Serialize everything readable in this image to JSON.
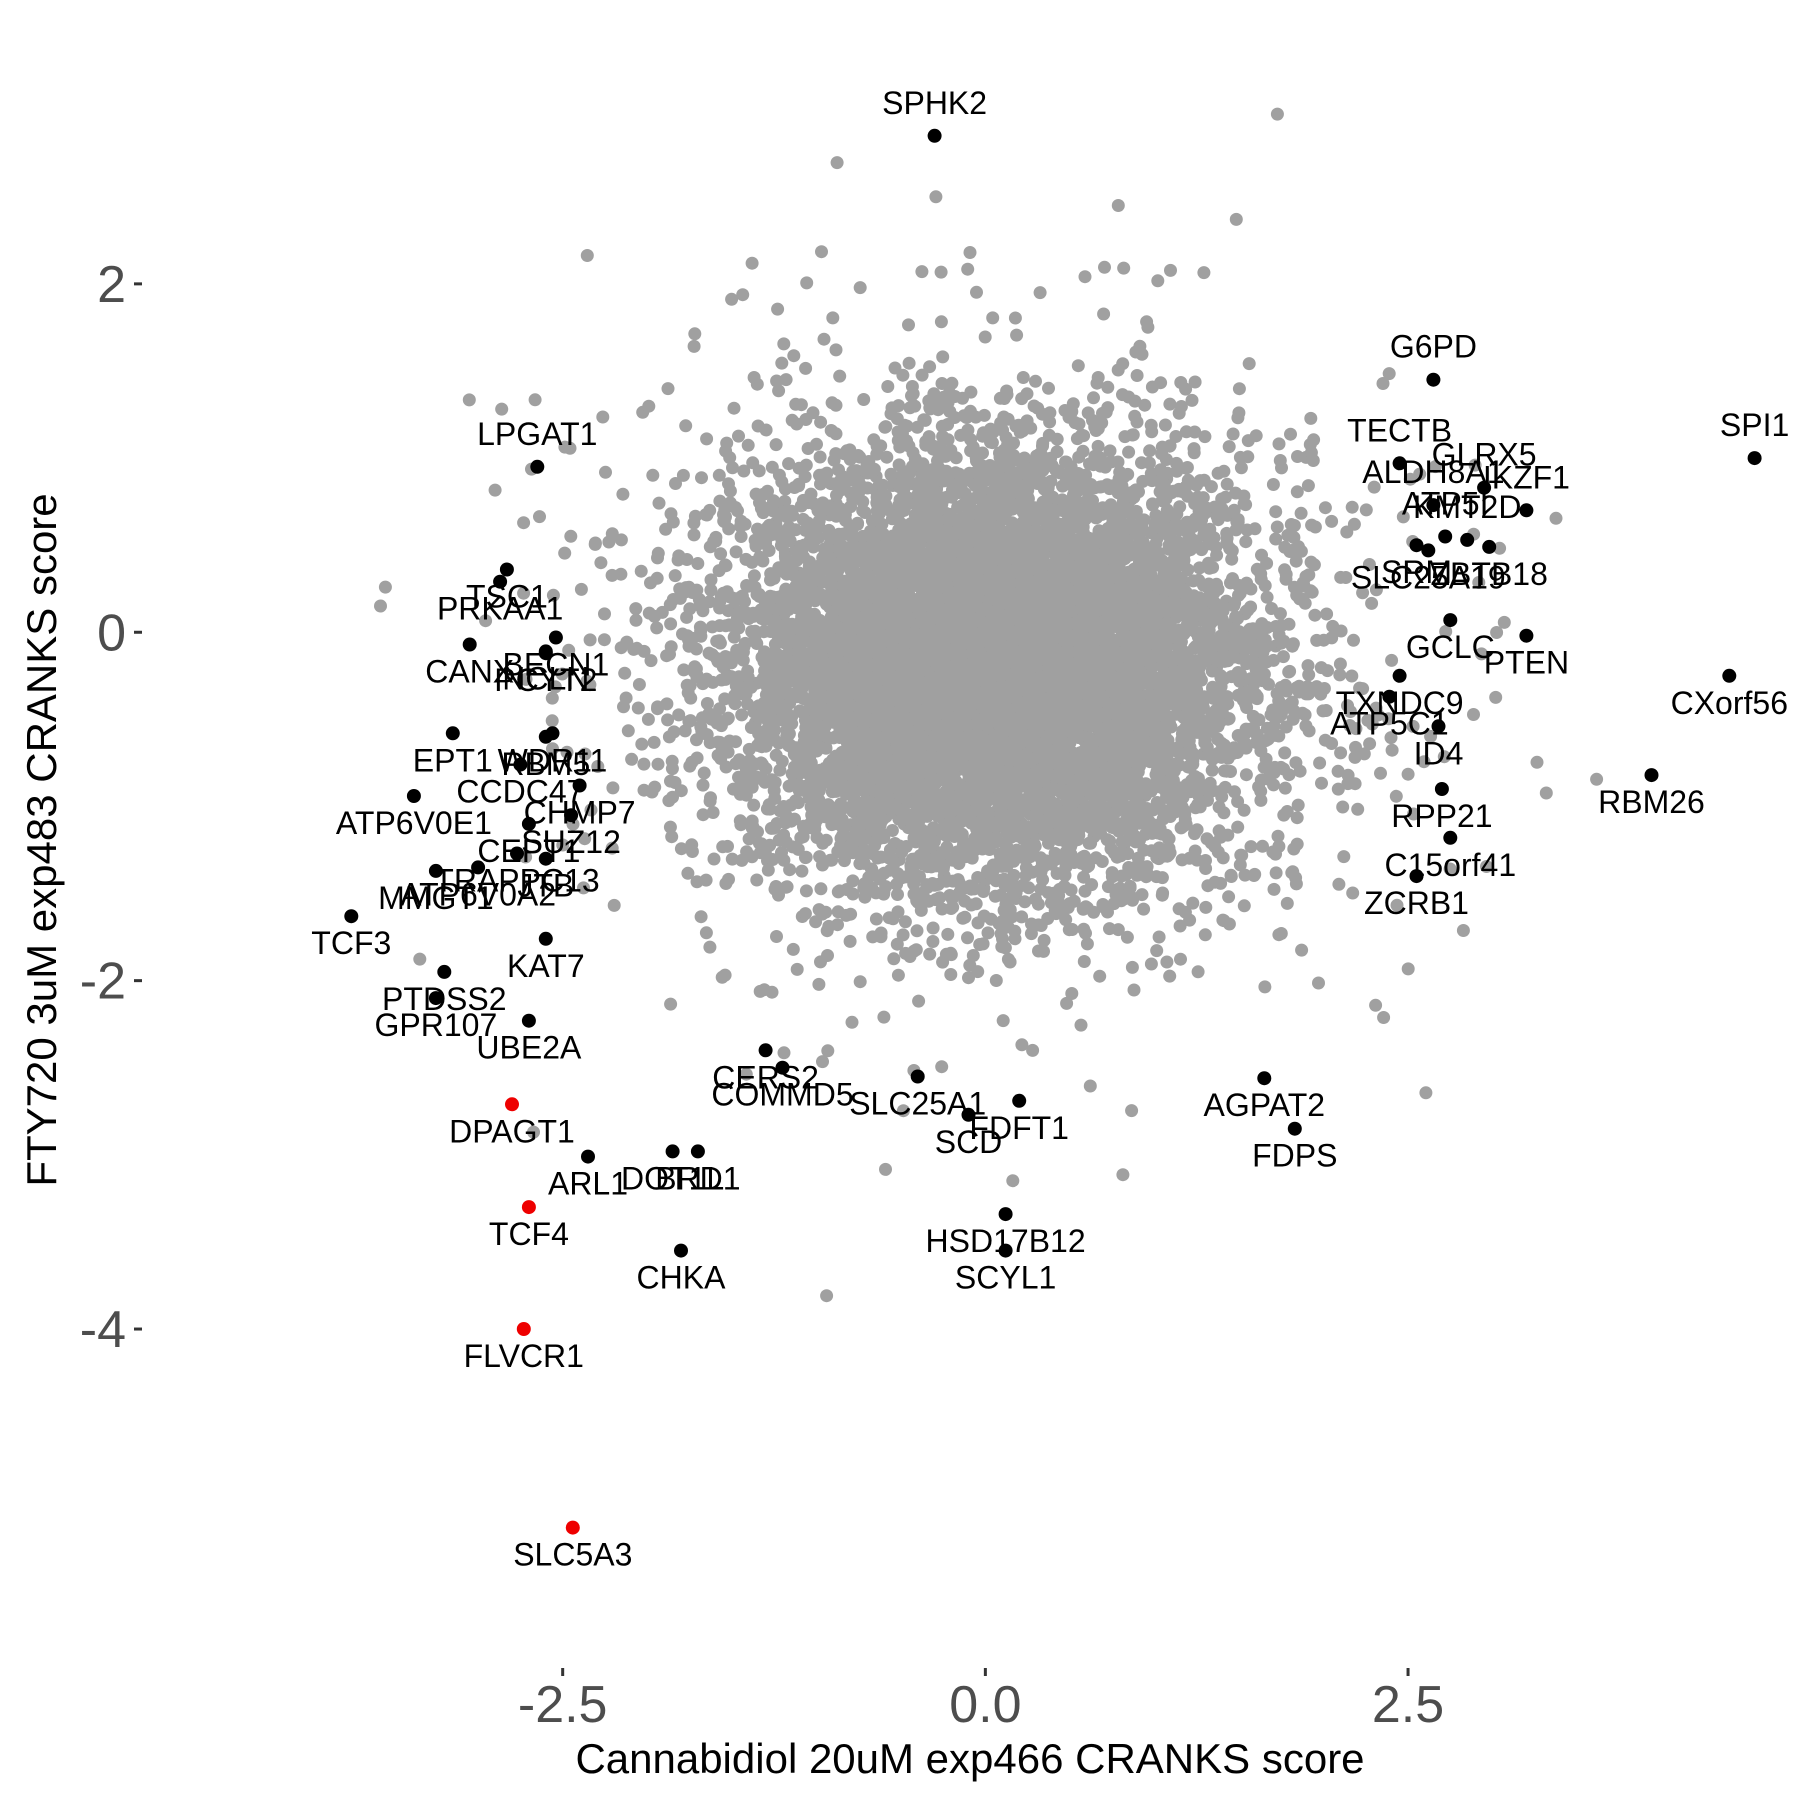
{
  "chart_data": {
    "type": "scatter",
    "xlabel": "Cannabidiol 20uM exp466 CRANKS score",
    "ylabel": "FTY720 3uM exp483 CRANKS score",
    "xlim": [
      -5.0,
      4.7
    ],
    "ylim": [
      -5.9,
      3.4
    ],
    "x_ticks": [
      -2.5,
      0.0,
      2.5
    ],
    "x_tick_labels": [
      "-2.5",
      "0.0",
      "2.5"
    ],
    "y_ticks": [
      2,
      0,
      -2,
      -4
    ],
    "y_tick_labels": [
      "2",
      "0",
      "-2",
      "-4"
    ],
    "grid": false,
    "legend": "none",
    "colors": {
      "background_points": "#a0a0a0",
      "highlight": "#000000",
      "hit": "#ee0000"
    },
    "background_cloud": {
      "description_free": true,
      "n_points": 9000,
      "x_center": 0.05,
      "y_center": -0.2,
      "x_sd": 0.75,
      "y_sd": 0.6
    },
    "labeled_points": [
      {
        "label": "SPHK2",
        "x": -0.3,
        "y": 2.85,
        "group": "highlight"
      },
      {
        "label": "G6PD",
        "x": 2.65,
        "y": 1.45,
        "group": "highlight"
      },
      {
        "label": "LPGAT1",
        "x": -2.65,
        "y": 0.95,
        "group": "highlight"
      },
      {
        "label": "TECTB",
        "x": 2.45,
        "y": 0.97,
        "group": "highlight"
      },
      {
        "label": "SPI1",
        "x": 4.55,
        "y": 1.0,
        "group": "highlight"
      },
      {
        "label": "GLRX5",
        "x": 2.95,
        "y": 0.83,
        "group": "highlight"
      },
      {
        "label": "ALDH8A1",
        "x": 2.65,
        "y": 0.73,
        "group": "highlight"
      },
      {
        "label": "IKZF1",
        "x": 3.2,
        "y": 0.7,
        "group": "highlight"
      },
      {
        "label": "TSC1",
        "x": -2.83,
        "y": 0.36,
        "group": "highlight"
      },
      {
        "label": "PRKAA1",
        "x": -2.87,
        "y": 0.29,
        "group": "highlight"
      },
      {
        "label": "SRM",
        "x": 2.55,
        "y": 0.5,
        "group": "highlight"
      },
      {
        "label": "KMT2D",
        "x": 2.85,
        "y": 0.53,
        "group": "highlight"
      },
      {
        "label": "ZBTB18",
        "x": 2.98,
        "y": 0.49,
        "group": "highlight"
      },
      {
        "label": "ATP5I",
        "x": 2.72,
        "y": 0.55,
        "group": "highlight"
      },
      {
        "label": "SLC25A19",
        "x": 2.62,
        "y": 0.47,
        "group": "highlight"
      },
      {
        "label": "BECN1",
        "x": -2.54,
        "y": -0.03,
        "group": "highlight"
      },
      {
        "label": "CANX",
        "x": -3.05,
        "y": -0.07,
        "group": "highlight"
      },
      {
        "label": "NCLN",
        "x": -2.6,
        "y": -0.11,
        "group": "highlight"
      },
      {
        "label": "PTEN",
        "x": 3.2,
        "y": -0.02,
        "group": "highlight"
      },
      {
        "label": "GCLC",
        "x": 2.75,
        "y": 0.07,
        "group": "highlight"
      },
      {
        "label": "CXorf56",
        "x": 4.4,
        "y": -0.25,
        "group": "highlight"
      },
      {
        "label": "PCYT2",
        "x": -2.6,
        "y": -0.12,
        "group": "highlight"
      },
      {
        "label": "TXNDC9",
        "x": 2.45,
        "y": -0.25,
        "group": "highlight"
      },
      {
        "label": "ATP5C1",
        "x": 2.39,
        "y": -0.37,
        "group": "highlight"
      },
      {
        "label": "EPT1",
        "x": -3.15,
        "y": -0.58,
        "group": "highlight"
      },
      {
        "label": "WDR11",
        "x": -2.56,
        "y": -0.58,
        "group": "highlight"
      },
      {
        "label": "RBM5",
        "x": -2.6,
        "y": -0.6,
        "group": "highlight"
      },
      {
        "label": "ID4",
        "x": 2.68,
        "y": -0.54,
        "group": "highlight"
      },
      {
        "label": "RBM26",
        "x": 3.94,
        "y": -0.82,
        "group": "highlight"
      },
      {
        "label": "RPP21",
        "x": 2.7,
        "y": -0.9,
        "group": "highlight"
      },
      {
        "label": "CCDC47",
        "x": -2.75,
        "y": -0.76,
        "group": "highlight"
      },
      {
        "label": "ATP6V0E1",
        "x": -3.38,
        "y": -0.94,
        "group": "highlight"
      },
      {
        "label": "CHMP7",
        "x": -2.4,
        "y": -0.88,
        "group": "highlight"
      },
      {
        "label": "C15orf41",
        "x": 2.75,
        "y": -1.18,
        "group": "highlight"
      },
      {
        "label": "SUZ12",
        "x": -2.45,
        "y": -1.05,
        "group": "highlight"
      },
      {
        "label": "CEPT1",
        "x": -2.7,
        "y": -1.1,
        "group": "highlight"
      },
      {
        "label": "TRAPPC13",
        "x": -2.77,
        "y": -1.27,
        "group": "highlight"
      },
      {
        "label": "JTB",
        "x": -2.6,
        "y": -1.3,
        "group": "highlight"
      },
      {
        "label": "MMGT1",
        "x": -3.25,
        "y": -1.37,
        "group": "highlight"
      },
      {
        "label": "ATP6V0A2",
        "x": -3.0,
        "y": -1.35,
        "group": "highlight"
      },
      {
        "label": "ZCRB1",
        "x": 2.55,
        "y": -1.4,
        "group": "highlight"
      },
      {
        "label": "KAT7",
        "x": -2.6,
        "y": -1.76,
        "group": "highlight"
      },
      {
        "label": "PTDSS2",
        "x": -3.2,
        "y": -1.95,
        "group": "highlight"
      },
      {
        "label": "GPR107",
        "x": -3.25,
        "y": -2.1,
        "group": "highlight"
      },
      {
        "label": "TCF3",
        "x": -3.75,
        "y": -1.63,
        "group": "highlight"
      },
      {
        "label": "UBE2A",
        "x": -2.7,
        "y": -2.23,
        "group": "highlight"
      },
      {
        "label": "CERS2",
        "x": -1.3,
        "y": -2.4,
        "group": "highlight"
      },
      {
        "label": "COMMD5",
        "x": -1.2,
        "y": -2.5,
        "group": "highlight"
      },
      {
        "label": "AGPAT2",
        "x": 1.65,
        "y": -2.56,
        "group": "highlight"
      },
      {
        "label": "FDFT1",
        "x": 0.2,
        "y": -2.69,
        "group": "highlight"
      },
      {
        "label": "DPAGT1",
        "x": -2.8,
        "y": -2.71,
        "group": "hit"
      },
      {
        "label": "SLC25A1",
        "x": -0.4,
        "y": -2.55,
        "group": "highlight"
      },
      {
        "label": "SCD",
        "x": -0.1,
        "y": -2.77,
        "group": "highlight"
      },
      {
        "label": "FDPS",
        "x": 1.83,
        "y": -2.85,
        "group": "highlight"
      },
      {
        "label": "DOT1L",
        "x": -1.85,
        "y": -2.98,
        "group": "highlight"
      },
      {
        "label": "ARL1",
        "x": -2.35,
        "y": -3.01,
        "group": "highlight"
      },
      {
        "label": "BRD1",
        "x": -1.7,
        "y": -2.98,
        "group": "highlight"
      },
      {
        "label": "TCF4",
        "x": -2.7,
        "y": -3.3,
        "group": "hit"
      },
      {
        "label": "HSD17B12",
        "x": 0.12,
        "y": -3.34,
        "group": "highlight"
      },
      {
        "label": "CHKA",
        "x": -1.8,
        "y": -3.55,
        "group": "highlight"
      },
      {
        "label": "SCYL1",
        "x": 0.12,
        "y": -3.55,
        "group": "highlight"
      },
      {
        "label": "FLVCR1",
        "x": -2.73,
        "y": -4.0,
        "group": "hit"
      },
      {
        "label": "SLC5A3",
        "x": -2.44,
        "y": -5.14,
        "group": "hit"
      }
    ]
  }
}
